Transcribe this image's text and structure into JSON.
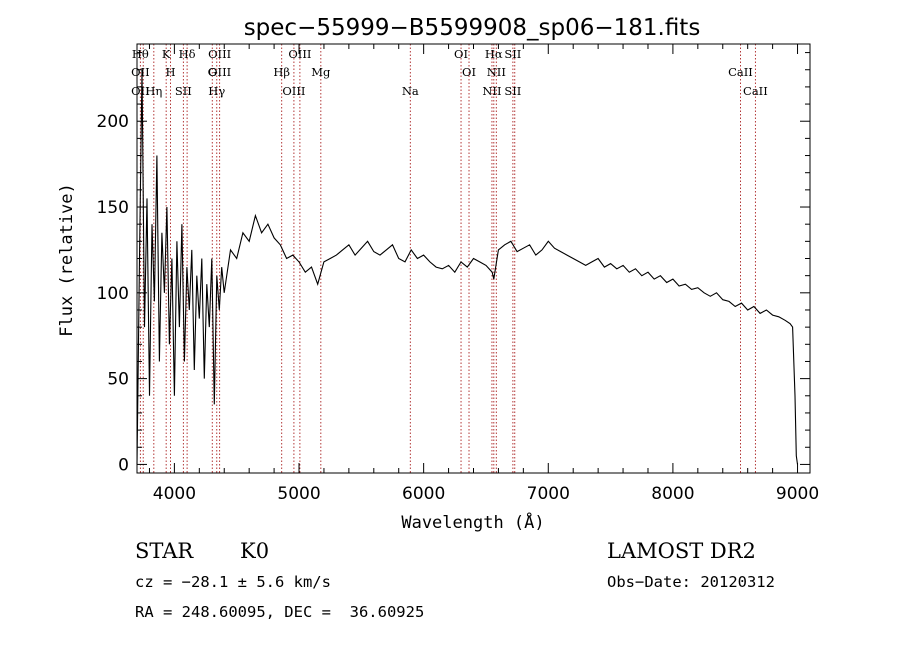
{
  "chart_data": {
    "type": "line",
    "title": "spec−55999−B5599908_sp06−181.fits",
    "xlabel": "Wavelength (Å)",
    "ylabel": "Flux (relative)",
    "xlim": [
      3700,
      9100
    ],
    "ylim": [
      -5,
      245
    ],
    "xticks": [
      4000,
      5000,
      6000,
      7000,
      8000,
      9000
    ],
    "yticks": [
      0,
      50,
      100,
      150,
      200
    ],
    "series": [
      {
        "name": "flux",
        "x": [
          3700,
          3720,
          3740,
          3760,
          3780,
          3800,
          3820,
          3840,
          3860,
          3880,
          3900,
          3920,
          3940,
          3960,
          3980,
          4000,
          4020,
          4040,
          4060,
          4080,
          4100,
          4120,
          4140,
          4160,
          4180,
          4200,
          4220,
          4240,
          4260,
          4280,
          4300,
          4320,
          4340,
          4360,
          4380,
          4400,
          4450,
          4500,
          4550,
          4600,
          4650,
          4700,
          4750,
          4800,
          4850,
          4900,
          4950,
          5000,
          5050,
          5100,
          5150,
          5200,
          5250,
          5300,
          5350,
          5400,
          5450,
          5500,
          5550,
          5600,
          5650,
          5700,
          5750,
          5800,
          5850,
          5900,
          5950,
          6000,
          6050,
          6100,
          6150,
          6200,
          6250,
          6300,
          6350,
          6400,
          6450,
          6500,
          6550,
          6563,
          6600,
          6650,
          6700,
          6750,
          6800,
          6850,
          6900,
          6950,
          7000,
          7050,
          7100,
          7150,
          7200,
          7250,
          7300,
          7350,
          7400,
          7450,
          7500,
          7550,
          7600,
          7650,
          7700,
          7750,
          7800,
          7850,
          7900,
          7950,
          8000,
          8050,
          8100,
          8150,
          8200,
          8250,
          8300,
          8350,
          8400,
          8450,
          8500,
          8550,
          8600,
          8650,
          8700,
          8750,
          8800,
          8850,
          8900,
          8940,
          8960,
          8980,
          8990,
          9000
        ],
        "values": [
          0,
          120,
          230,
          80,
          155,
          40,
          140,
          95,
          180,
          60,
          135,
          100,
          150,
          70,
          120,
          40,
          130,
          80,
          140,
          60,
          115,
          90,
          125,
          55,
          110,
          85,
          120,
          50,
          105,
          80,
          120,
          35,
          110,
          90,
          115,
          100,
          125,
          120,
          135,
          130,
          145,
          135,
          140,
          132,
          128,
          120,
          122,
          118,
          112,
          115,
          105,
          118,
          120,
          122,
          125,
          128,
          122,
          126,
          130,
          124,
          122,
          125,
          128,
          120,
          118,
          125,
          120,
          122,
          118,
          115,
          114,
          116,
          112,
          118,
          115,
          120,
          118,
          116,
          112,
          108,
          125,
          128,
          130,
          124,
          126,
          128,
          122,
          125,
          130,
          126,
          124,
          122,
          120,
          118,
          116,
          118,
          120,
          115,
          117,
          114,
          116,
          112,
          114,
          110,
          112,
          108,
          110,
          106,
          108,
          104,
          105,
          102,
          103,
          100,
          98,
          100,
          96,
          95,
          92,
          94,
          90,
          92,
          88,
          90,
          87,
          86,
          84,
          82,
          80,
          40,
          5,
          0
        ]
      }
    ],
    "lines": [
      {
        "wavelength": 3727,
        "names": [
          "Hθ",
          "OII",
          "OII"
        ]
      },
      {
        "wavelength": 3750,
        "names": []
      },
      {
        "wavelength": 3835,
        "names": [
          "Hη"
        ]
      },
      {
        "wavelength": 3934,
        "names": [
          "K"
        ]
      },
      {
        "wavelength": 3969,
        "names": [
          "H"
        ]
      },
      {
        "wavelength": 4072,
        "names": [
          "SII"
        ]
      },
      {
        "wavelength": 4102,
        "names": [
          "Hδ"
        ]
      },
      {
        "wavelength": 4304,
        "names": [
          "G"
        ]
      },
      {
        "wavelength": 4340,
        "names": [
          "Hγ"
        ]
      },
      {
        "wavelength": 4363,
        "names": [
          "OIII",
          "OIII"
        ]
      },
      {
        "wavelength": 4861,
        "names": [
          "Hβ"
        ]
      },
      {
        "wavelength": 4959,
        "names": [
          "OIII"
        ]
      },
      {
        "wavelength": 5007,
        "names": [
          "OIII"
        ]
      },
      {
        "wavelength": 5175,
        "names": [
          "Mg"
        ]
      },
      {
        "wavelength": 5893,
        "names": [
          "Na"
        ]
      },
      {
        "wavelength": 6300,
        "names": [
          "OI"
        ]
      },
      {
        "wavelength": 6364,
        "names": [
          "OI"
        ]
      },
      {
        "wavelength": 6548,
        "names": [
          "NII"
        ]
      },
      {
        "wavelength": 6563,
        "names": [
          "Hα"
        ]
      },
      {
        "wavelength": 6583,
        "names": [
          "NII"
        ]
      },
      {
        "wavelength": 6716,
        "names": [
          "SII",
          "SII"
        ]
      },
      {
        "wavelength": 6731,
        "names": []
      },
      {
        "wavelength": 8542,
        "names": [
          "CaII"
        ]
      },
      {
        "wavelength": 8662,
        "names": [
          "CaII"
        ]
      }
    ],
    "grid": false,
    "legend": "none"
  },
  "info": {
    "class": "STAR",
    "subclass": "K0",
    "survey": "LAMOST DR2",
    "cz": "cz = −28.1 ± 5.6 km/s",
    "obs_date": "Obs−Date: 20120312",
    "coords": "RA = 248.60095, DEC =  36.60925"
  },
  "colors": {
    "spectrum": "#000000",
    "line_marker": "#aa2222",
    "axes": "#000000"
  }
}
